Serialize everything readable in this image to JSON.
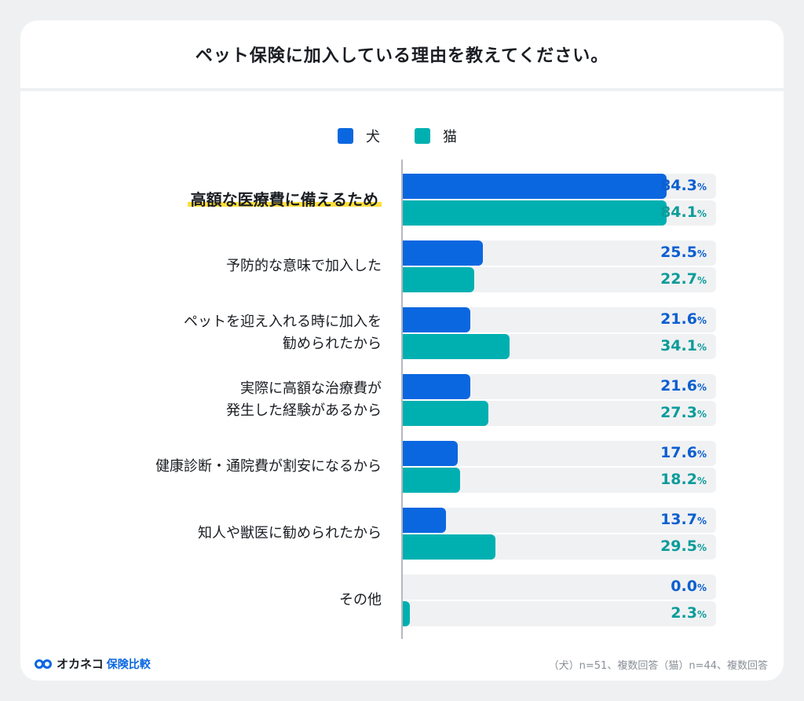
{
  "title": "ペット保険に加入している理由を教えてください。",
  "logo": {
    "brand": "オカネコ",
    "suffix": "保険比較"
  },
  "note": "（犬）n=51、複数回答（猫）n=44、複数回答",
  "colors": {
    "dog": "#0b67e0",
    "cat": "#00b0b1",
    "dog_text": "#0b5fd0",
    "cat_text": "#0a9c9a"
  },
  "chart_data": {
    "type": "bar",
    "title": "ペット保険に加入している理由を教えてください。",
    "orientation": "horizontal",
    "xlim": [
      0,
      100
    ],
    "unit": "%",
    "legend_position": "top",
    "categories": [
      [
        "高額な医療費に備えるため"
      ],
      [
        "予防的な意味で加入した"
      ],
      [
        "ペットを迎え入れる時に加入を",
        "勧められたから"
      ],
      [
        "実際に高額な治療費が",
        "発生した経験があるから"
      ],
      [
        "健康診断・通院費が割安になるから"
      ],
      [
        "知人や獣医に勧められたから"
      ],
      [
        "その他"
      ]
    ],
    "series": [
      {
        "name": "犬",
        "values": [
          84.3,
          25.5,
          21.6,
          21.6,
          17.6,
          13.7,
          0.0
        ]
      },
      {
        "name": "猫",
        "values": [
          84.1,
          22.7,
          34.1,
          27.3,
          18.2,
          29.5,
          2.3
        ]
      }
    ]
  }
}
